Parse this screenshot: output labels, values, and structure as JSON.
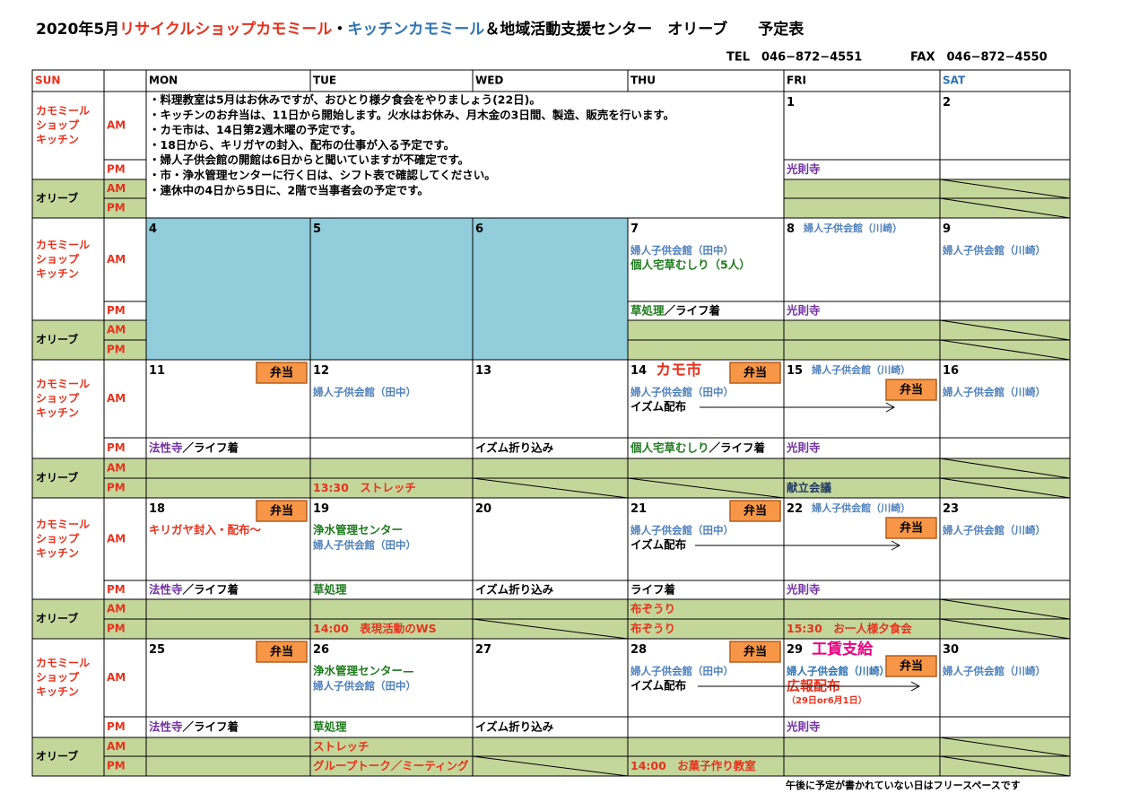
{
  "header": {
    "title": [
      {
        "text": "2020年5月",
        "color": "#000000"
      },
      {
        "text": "リサイクルショップカモミール",
        "color": "#e8311c"
      },
      {
        "text": "・",
        "color": "#000000"
      },
      {
        "text": "キッチンカモミール",
        "color": "#2e74b5"
      },
      {
        "text": "＆地域活動支援センター　オリーブ　　予定表",
        "color": "#000000"
      }
    ],
    "tel": "TEL　046−872−4551",
    "fax": "FAX　046−872−4550"
  },
  "days": [
    {
      "key": "SUN",
      "text": "SUN",
      "color": "#e8311c"
    },
    {
      "key": "MON",
      "text": "MON",
      "color": "#000000"
    },
    {
      "key": "TUE",
      "text": "TUE",
      "color": "#000000"
    },
    {
      "key": "WED",
      "text": "WED",
      "color": "#000000"
    },
    {
      "key": "THU",
      "text": "THU",
      "color": "#000000"
    },
    {
      "key": "FRI",
      "text": "FRI",
      "color": "#000000"
    },
    {
      "key": "SAT",
      "text": "SAT",
      "color": "#2e74b5"
    }
  ],
  "labels": {
    "shop": [
      "カモミール",
      "ショップ",
      "キッチン"
    ],
    "olive": "オリーブ",
    "am": "AM",
    "pm": "PM"
  },
  "notes": [
    "・料理教室は5月はお休みですが、おひとり様夕食会をやりましょう(22日)。",
    "・キッチンのお弁当は、11日から開始します。火水はお休み、月木金の3日間、製造、販売を行います。",
    "・カモ市は、14日第2週木曜の予定です。",
    "・18日から、キリガヤの封入、配布の仕事が入る予定です。",
    "・婦人子供会館の開館は6日からと聞いていますが不確定です。",
    "・市・浄水管理センターに行く日は、シフト表で確認してください。",
    "・連休中の4日から5日に、2階で当事者会の予定です。"
  ],
  "weeks": [
    {
      "cells": {
        "FRI": {
          "date": [
            {
              "text": "1"
            }
          ],
          "pm": [
            [
              {
                "text": "光則寺",
                "color": "#7030a0"
              }
            ]
          ]
        },
        "SAT": {
          "date": [
            {
              "text": "2"
            }
          ]
        }
      }
    },
    {
      "cells": {
        "MON": {
          "date": [
            {
              "text": "4"
            }
          ]
        },
        "TUE": {
          "date": [
            {
              "text": "5"
            }
          ]
        },
        "WED": {
          "date": [
            {
              "text": "6"
            }
          ]
        },
        "THU": {
          "date": [
            {
              "text": "7"
            }
          ],
          "am": [
            [
              {
                "text": "婦人子供会館（田中）",
                "color": "#4f81bd"
              }
            ],
            [
              {
                "text": "個人宅草むしり（5人）",
                "color": "#1e7b1e"
              }
            ]
          ],
          "pm": [
            [
              {
                "text": "草処理",
                "color": "#1e7b1e"
              },
              {
                "text": "／ライフ着"
              }
            ]
          ]
        },
        "FRI": {
          "date": [
            {
              "text": "8"
            },
            {
              "text": "婦人子供会館（川崎）",
              "color": "#4f81bd"
            }
          ],
          "pm": [
            [
              {
                "text": "光則寺",
                "color": "#7030a0"
              }
            ]
          ]
        },
        "SAT": {
          "date": [
            {
              "text": "9"
            }
          ],
          "am": [
            [
              {
                "text": "婦人子供会館（川崎）",
                "color": "#4f81bd"
              }
            ]
          ]
        }
      }
    },
    {
      "cells": {
        "MON": {
          "date": [
            {
              "text": "11"
            }
          ],
          "bento": "弁当",
          "pm": [
            [
              {
                "text": "法性寺",
                "color": "#7030a0"
              },
              {
                "text": "／ライフ着"
              }
            ]
          ]
        },
        "TUE": {
          "date": [
            {
              "text": "12"
            }
          ],
          "am": [
            [
              {
                "text": "婦人子供会館（田中）",
                "color": "#4f81bd"
              }
            ]
          ],
          "opm": [
            [
              {
                "text": "13:30　ストレッチ",
                "color": "#e8311c"
              }
            ]
          ]
        },
        "WED": {
          "date": [
            {
              "text": "13"
            }
          ],
          "pm": [
            [
              {
                "text": "イズム折り込み"
              }
            ]
          ]
        },
        "THU": {
          "date": [
            {
              "text": "14"
            },
            {
              "text": "カモ市",
              "color": "#e8311c"
            }
          ],
          "bento": "弁当",
          "am": [
            [
              {
                "text": "婦人子供会館（田中）",
                "color": "#4f81bd"
              }
            ],
            [
              {
                "text": "イズム配布"
              }
            ]
          ],
          "pm": [
            [
              {
                "text": "個人宅草むしり",
                "color": "#1e7b1e"
              },
              {
                "text": "／ライフ着"
              }
            ]
          ]
        },
        "FRI": {
          "date": [
            {
              "text": "15"
            },
            {
              "text": "婦人子供会館（川崎）",
              "color": "#4f81bd"
            }
          ],
          "bento": "弁当",
          "pm": [
            [
              {
                "text": "光則寺",
                "color": "#7030a0"
              }
            ]
          ],
          "opm": [
            [
              {
                "text": "献立会議",
                "color": "#1f3864"
              }
            ]
          ]
        },
        "SAT": {
          "date": [
            {
              "text": "16"
            }
          ],
          "am": [
            [
              {
                "text": "婦人子供会館（川崎）",
                "color": "#4f81bd"
              }
            ]
          ]
        }
      }
    },
    {
      "cells": {
        "MON": {
          "date": [
            {
              "text": "18"
            }
          ],
          "bento": "弁当",
          "am": [
            [
              {
                "text": "キリガヤ封入・配布～",
                "color": "#e8311c"
              }
            ]
          ],
          "pm": [
            [
              {
                "text": "法性寺",
                "color": "#7030a0"
              },
              {
                "text": "／ライフ着"
              }
            ]
          ]
        },
        "TUE": {
          "date": [
            {
              "text": "19"
            }
          ],
          "am": [
            [
              {
                "text": "浄水管理センター",
                "color": "#1e7b1e"
              }
            ],
            [
              {
                "text": "婦人子供会館（田中）",
                "color": "#4f81bd"
              }
            ]
          ],
          "pm": [
            [
              {
                "text": "草処理",
                "color": "#1e7b1e"
              }
            ]
          ],
          "opm": [
            [
              {
                "text": "14:00　表現活動のWS",
                "color": "#e8311c"
              }
            ]
          ]
        },
        "WED": {
          "date": [
            {
              "text": "20"
            }
          ],
          "pm": [
            [
              {
                "text": "イズム折り込み"
              }
            ]
          ]
        },
        "THU": {
          "date": [
            {
              "text": "21"
            }
          ],
          "bento": "弁当",
          "am": [
            [
              {
                "text": "婦人子供会館（田中）",
                "color": "#4f81bd"
              }
            ],
            [
              {
                "text": "イズム配布"
              }
            ]
          ],
          "pm": [
            [
              {
                "text": "ライフ着"
              }
            ]
          ],
          "oam": [
            [
              {
                "text": "布ぞうり",
                "color": "#e8311c"
              }
            ]
          ],
          "opm": [
            [
              {
                "text": "布ぞうり",
                "color": "#e8311c"
              }
            ]
          ]
        },
        "FRI": {
          "date": [
            {
              "text": "22"
            },
            {
              "text": "婦人子供会館（川崎）",
              "color": "#4f81bd"
            }
          ],
          "bento": "弁当",
          "pm": [
            [
              {
                "text": "光則寺",
                "color": "#7030a0"
              }
            ]
          ],
          "opm": [
            [
              {
                "text": "15:30　お一人様夕食会",
                "color": "#e8311c"
              }
            ]
          ]
        },
        "SAT": {
          "date": [
            {
              "text": "23"
            }
          ],
          "am": [
            [
              {
                "text": "婦人子供会館（川崎）",
                "color": "#4f81bd"
              }
            ]
          ]
        }
      }
    },
    {
      "cells": {
        "MON": {
          "date": [
            {
              "text": "25"
            }
          ],
          "bento": "弁当",
          "pm": [
            [
              {
                "text": "法性寺",
                "color": "#7030a0"
              },
              {
                "text": "／ライフ着"
              }
            ]
          ]
        },
        "TUE": {
          "date": [
            {
              "text": "26"
            }
          ],
          "am": [
            [
              {
                "text": "浄水管理センター—",
                "color": "#1e7b1e"
              }
            ],
            [
              {
                "text": "婦人子供会館（田中）",
                "color": "#4f81bd"
              }
            ]
          ],
          "pm": [
            [
              {
                "text": "草処理",
                "color": "#1e7b1e"
              }
            ]
          ],
          "oam": [
            [
              {
                "text": "ストレッチ",
                "color": "#e8311c"
              }
            ]
          ],
          "opm": [
            [
              {
                "text": "グループトーク／ミーティング",
                "color": "#e8311c"
              }
            ]
          ]
        },
        "WED": {
          "date": [
            {
              "text": "27"
            }
          ],
          "pm": [
            [
              {
                "text": "イズム折り込み"
              }
            ]
          ]
        },
        "THU": {
          "date": [
            {
              "text": "28"
            }
          ],
          "bento": "弁当",
          "am": [
            [
              {
                "text": "婦人子供会館（田中）",
                "color": "#4f81bd"
              }
            ],
            [
              {
                "text": "イズム配布"
              }
            ]
          ],
          "opm": [
            [
              {
                "text": "14:00　お菓子作り教室",
                "color": "#e8311c"
              }
            ]
          ]
        },
        "FRI": {
          "date": [
            {
              "text": "29"
            },
            {
              "text": "工賃支給",
              "color": "#e6007e"
            }
          ],
          "bento": "弁当",
          "am": [
            [
              {
                "text": "婦人子供会館（川崎）",
                "color": "#2e74b5"
              }
            ],
            [
              {
                "text": "広報配布",
                "color": "#e8311c"
              }
            ],
            [
              {
                "text": "（29日or6月1日）",
                "color": "#e8311c"
              }
            ]
          ],
          "pm": [
            [
              {
                "text": "光則寺",
                "color": "#7030a0"
              }
            ]
          ]
        },
        "SAT": {
          "date": [
            {
              "text": "30"
            }
          ],
          "am": [
            [
              {
                "text": "婦人子供会館（川崎）",
                "color": "#4f81bd"
              }
            ]
          ]
        }
      }
    }
  ],
  "footer": "午後に予定が書かれていない日はフリースペースです"
}
